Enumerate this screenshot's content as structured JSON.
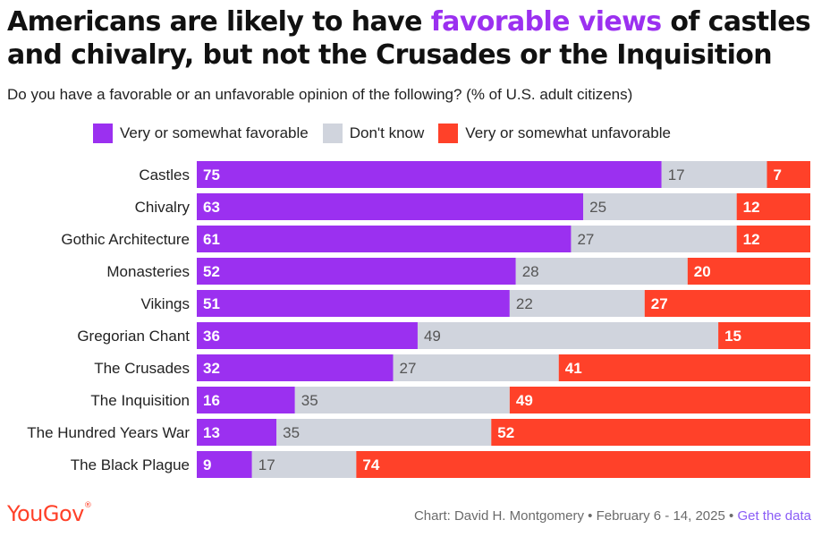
{
  "title": {
    "part1": "Americans are likely to have ",
    "highlight": "favorable views",
    "part2": " of castles and chivalry, but not the Crusades or the Inquisition"
  },
  "subtitle": "Do you have a favorable or an unfavorable opinion of the following? (% of U.S. adult citizens)",
  "colors": {
    "favorable": "#9B30F0",
    "dontknow": "#D0D4DD",
    "unfavorable": "#FF4129",
    "brand": "#FF4129"
  },
  "chart_data": {
    "type": "bar",
    "orientation": "horizontal",
    "stacked": true,
    "categories": [
      "Castles",
      "Chivalry",
      "Gothic Architecture",
      "Monasteries",
      "Vikings",
      "Gregorian Chant",
      "The Crusades",
      "The Inquisition",
      "The Hundred Years War",
      "The Black Plague"
    ],
    "series": [
      {
        "name": "Very or somewhat favorable",
        "values": [
          75,
          63,
          61,
          52,
          51,
          36,
          32,
          16,
          13,
          9
        ]
      },
      {
        "name": "Don't know",
        "values": [
          17,
          25,
          27,
          28,
          22,
          49,
          27,
          35,
          35,
          17
        ]
      },
      {
        "name": "Very or somewhat unfavorable",
        "values": [
          7,
          12,
          12,
          20,
          27,
          15,
          41,
          49,
          52,
          74
        ]
      }
    ],
    "legend_position": "top",
    "grid": false
  },
  "footer": {
    "logo": "YouGov",
    "credit": "Chart: David H. Montgomery • February 6 - 14, 2025 • ",
    "link": "Get the data"
  }
}
